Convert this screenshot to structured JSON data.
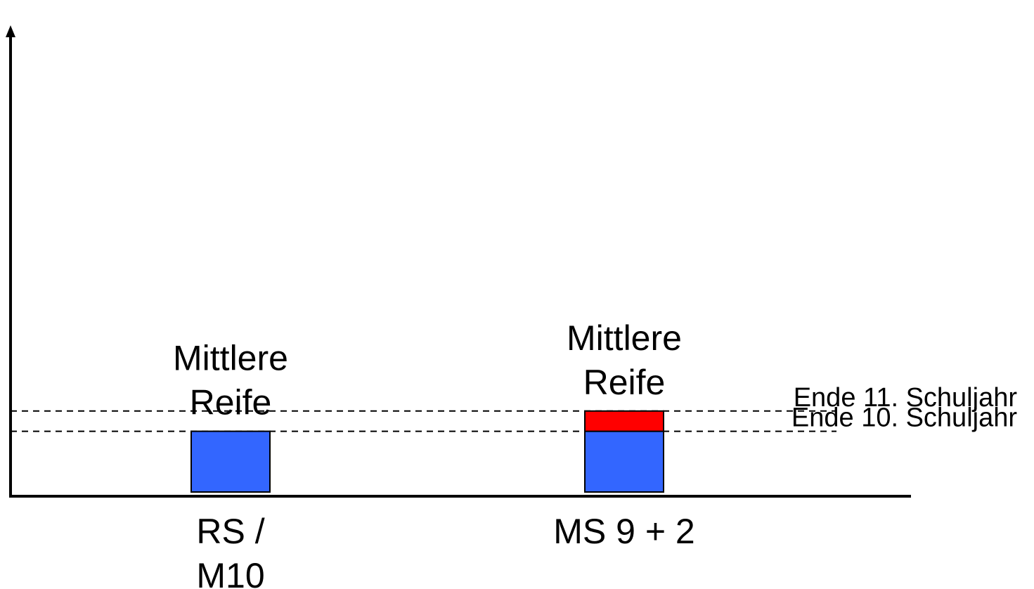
{
  "chart_data": {
    "type": "bar",
    "stacked": true,
    "categories": [
      {
        "lines": [
          "RS /",
          "M10"
        ]
      },
      {
        "lines": [
          "MS 9 + 2"
        ]
      }
    ],
    "bars": [
      {
        "segments": [
          {
            "from": 0,
            "to": 10,
            "color": "#3366ff"
          }
        ],
        "label_lines": [
          "Mittlere",
          "Reife"
        ]
      },
      {
        "segments": [
          {
            "from": 0,
            "to": 10,
            "color": "#3366ff"
          },
          {
            "from": 10,
            "to": 11,
            "color": "#ff0000"
          }
        ],
        "label_lines": [
          "Mittlere",
          "Reife"
        ]
      }
    ],
    "reference_lines": [
      {
        "y": 10,
        "label": "Ende 10. Schuljahr"
      },
      {
        "y": 11,
        "label": "Ende 11. Schuljahr"
      }
    ],
    "ylim": [
      0,
      12
    ],
    "y_baseline": 7,
    "title": "",
    "xlabel": "",
    "ylabel": "",
    "grid": false,
    "legend": "none"
  }
}
